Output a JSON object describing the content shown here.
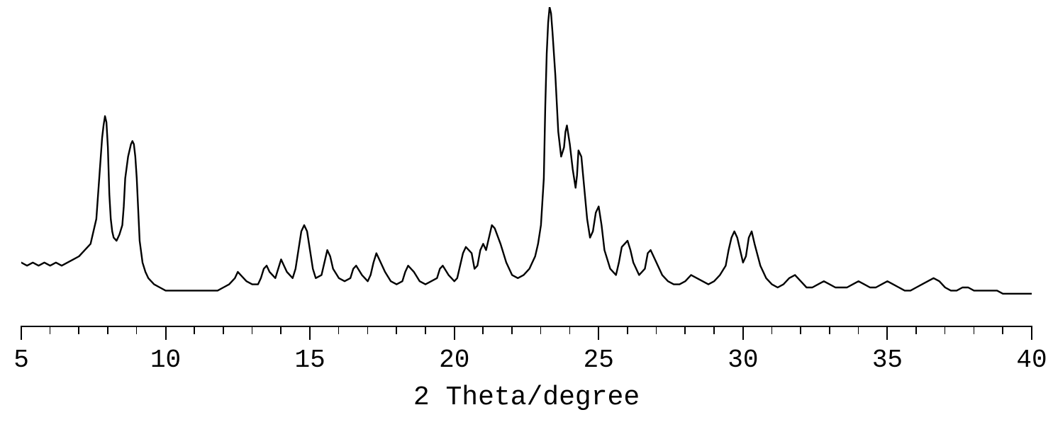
{
  "chart": {
    "type": "line",
    "xlabel": "2 Theta/degree",
    "xlim": [
      5,
      40
    ],
    "ylim": [
      0,
      100
    ],
    "line_color": "#000000",
    "line_width": 2.4,
    "background_color": "#ffffff",
    "tick_label_fontsize": 36,
    "xlabel_fontsize": 38,
    "font_family": "Courier New",
    "major_ticks": [
      5,
      10,
      15,
      20,
      25,
      30,
      35,
      40
    ],
    "minor_tick_step": 1,
    "major_tick_height": 20,
    "minor_tick_height": 12,
    "data": {
      "x": [
        5.0,
        5.2,
        5.4,
        5.6,
        5.8,
        6.0,
        6.2,
        6.4,
        6.6,
        6.8,
        7.0,
        7.2,
        7.4,
        7.6,
        7.7,
        7.8,
        7.85,
        7.9,
        7.95,
        8.0,
        8.05,
        8.1,
        8.15,
        8.2,
        8.3,
        8.4,
        8.5,
        8.55,
        8.6,
        8.7,
        8.8,
        8.85,
        8.9,
        8.95,
        9.0,
        9.05,
        9.1,
        9.2,
        9.3,
        9.4,
        9.5,
        9.6,
        9.8,
        10.0,
        10.2,
        10.4,
        10.6,
        10.8,
        11.0,
        11.2,
        11.4,
        11.6,
        11.8,
        12.0,
        12.2,
        12.4,
        12.5,
        12.6,
        12.8,
        13.0,
        13.2,
        13.3,
        13.4,
        13.5,
        13.6,
        13.8,
        13.9,
        14.0,
        14.1,
        14.2,
        14.4,
        14.5,
        14.6,
        14.7,
        14.8,
        14.9,
        15.0,
        15.1,
        15.2,
        15.4,
        15.5,
        15.6,
        15.7,
        15.8,
        16.0,
        16.2,
        16.4,
        16.5,
        16.6,
        16.8,
        17.0,
        17.1,
        17.2,
        17.3,
        17.4,
        17.6,
        17.8,
        18.0,
        18.2,
        18.3,
        18.4,
        18.6,
        18.8,
        19.0,
        19.2,
        19.4,
        19.5,
        19.6,
        19.8,
        20.0,
        20.1,
        20.2,
        20.3,
        20.4,
        20.6,
        20.7,
        20.8,
        20.9,
        21.0,
        21.1,
        21.2,
        21.3,
        21.4,
        21.6,
        21.8,
        22.0,
        22.2,
        22.4,
        22.6,
        22.7,
        22.8,
        22.9,
        23.0,
        23.1,
        23.15,
        23.2,
        23.25,
        23.3,
        23.35,
        23.4,
        23.5,
        23.6,
        23.7,
        23.8,
        23.85,
        23.9,
        24.0,
        24.1,
        24.2,
        24.25,
        24.3,
        24.4,
        24.5,
        24.6,
        24.7,
        24.8,
        24.9,
        25.0,
        25.1,
        25.2,
        25.4,
        25.6,
        25.7,
        25.8,
        26.0,
        26.1,
        26.2,
        26.4,
        26.6,
        26.7,
        26.8,
        27.0,
        27.2,
        27.4,
        27.6,
        27.8,
        28.0,
        28.2,
        28.4,
        28.6,
        28.8,
        29.0,
        29.2,
        29.4,
        29.5,
        29.6,
        29.7,
        29.8,
        29.9,
        30.0,
        30.1,
        30.2,
        30.3,
        30.4,
        30.6,
        30.8,
        31.0,
        31.2,
        31.4,
        31.6,
        31.8,
        32.0,
        32.2,
        32.4,
        32.6,
        32.8,
        33.0,
        33.2,
        33.4,
        33.6,
        33.8,
        34.0,
        34.2,
        34.4,
        34.6,
        34.8,
        35.0,
        35.2,
        35.4,
        35.6,
        35.8,
        36.0,
        36.2,
        36.4,
        36.6,
        36.8,
        37.0,
        37.2,
        37.4,
        37.6,
        37.8,
        38.0,
        38.2,
        38.4,
        38.6,
        38.8,
        39.0,
        39.2,
        39.4,
        39.6,
        39.8,
        40.0
      ],
      "y": [
        18,
        17,
        18,
        17,
        18,
        17,
        18,
        17,
        18,
        19,
        20,
        22,
        24,
        32,
        45,
        58,
        62,
        65,
        63,
        55,
        40,
        32,
        28,
        26,
        25,
        27,
        30,
        36,
        45,
        52,
        56,
        57,
        56,
        52,
        45,
        35,
        25,
        18,
        15,
        13,
        12,
        11,
        10,
        9,
        9,
        9,
        9,
        9,
        9,
        9,
        9,
        9,
        9,
        10,
        11,
        13,
        15,
        14,
        12,
        11,
        11,
        13,
        16,
        17,
        15,
        13,
        16,
        19,
        17,
        15,
        13,
        16,
        22,
        28,
        30,
        28,
        22,
        16,
        13,
        14,
        18,
        22,
        20,
        16,
        13,
        12,
        13,
        16,
        17,
        14,
        12,
        14,
        18,
        21,
        19,
        15,
        12,
        11,
        12,
        15,
        17,
        15,
        12,
        11,
        12,
        13,
        16,
        17,
        14,
        12,
        13,
        17,
        21,
        23,
        21,
        16,
        17,
        22,
        24,
        22,
        26,
        30,
        29,
        24,
        18,
        14,
        13,
        14,
        16,
        18,
        20,
        24,
        30,
        45,
        68,
        85,
        95,
        100,
        98,
        92,
        78,
        60,
        52,
        55,
        60,
        62,
        56,
        48,
        42,
        46,
        54,
        52,
        42,
        32,
        26,
        28,
        34,
        36,
        30,
        22,
        16,
        14,
        18,
        23,
        25,
        22,
        18,
        14,
        16,
        21,
        22,
        18,
        14,
        12,
        11,
        11,
        12,
        14,
        13,
        12,
        11,
        12,
        14,
        17,
        22,
        26,
        28,
        26,
        22,
        18,
        20,
        26,
        28,
        24,
        17,
        13,
        11,
        10,
        11,
        13,
        14,
        12,
        10,
        10,
        11,
        12,
        11,
        10,
        10,
        10,
        11,
        12,
        11,
        10,
        10,
        11,
        12,
        11,
        10,
        9,
        9,
        10,
        11,
        12,
        13,
        12,
        10,
        9,
        9,
        10,
        10,
        9,
        9,
        9,
        9,
        9,
        8,
        8,
        8,
        8,
        8,
        8
      ]
    }
  }
}
